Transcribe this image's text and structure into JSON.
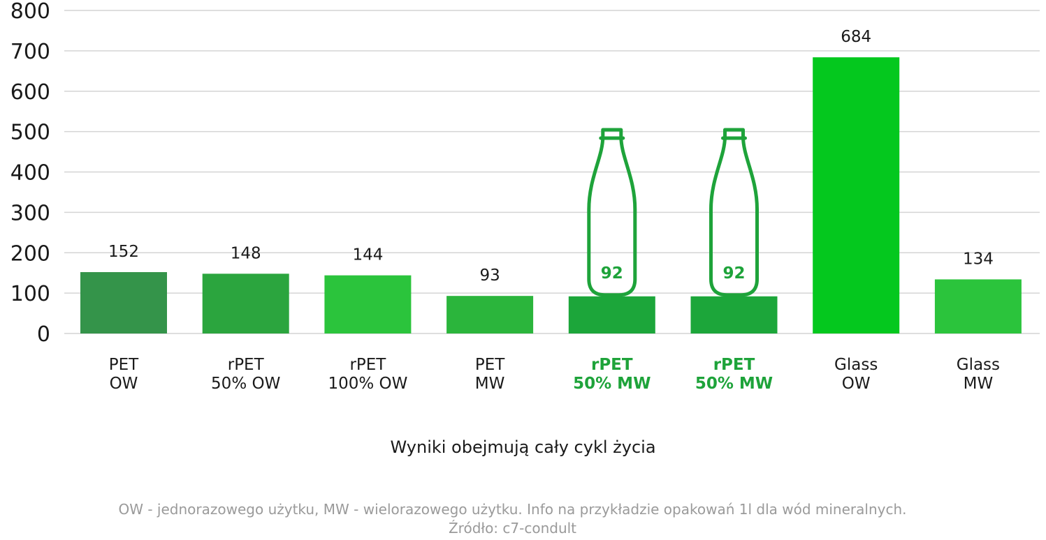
{
  "chart_data": {
    "type": "bar",
    "categories": [
      [
        "PET",
        "OW"
      ],
      [
        "rPET",
        "50% OW"
      ],
      [
        "rPET",
        "100% OW"
      ],
      [
        "PET",
        "MW"
      ],
      [
        "rPET",
        "50% MW"
      ],
      [
        "rPET",
        "50% MW"
      ],
      [
        "Glass",
        "OW"
      ],
      [
        "Glass",
        "MW"
      ]
    ],
    "values": [
      152,
      148,
      144,
      93,
      92,
      92,
      684,
      134
    ],
    "value_labels": [
      "152",
      "148",
      "144",
      "93",
      "92",
      "92",
      "684",
      "134"
    ],
    "highlighted": [
      false,
      false,
      false,
      false,
      true,
      true,
      false,
      false
    ],
    "bar_colors": [
      "#34944a",
      "#2ba53e",
      "#2bc43c",
      "#2bb53c",
      "#1ca63a",
      "#1ca63a",
      "#04c81e",
      "#2bc43c"
    ],
    "highlight_color": "#1ea33a",
    "bottle_icon_on": [
      4,
      5
    ],
    "ylim": [
      0,
      800
    ],
    "yticks": [
      0,
      100,
      200,
      300,
      400,
      500,
      600,
      700,
      800
    ],
    "grid": true,
    "xlabel": "Wyniki obejmują cały cykl życia",
    "footnote": [
      "OW - jednorazowego użytku, MW - wielorazowego użytku. Info na przykładzie opakowań 1l dla wód mineralnych.",
      "Źródło: c7-condult"
    ]
  }
}
